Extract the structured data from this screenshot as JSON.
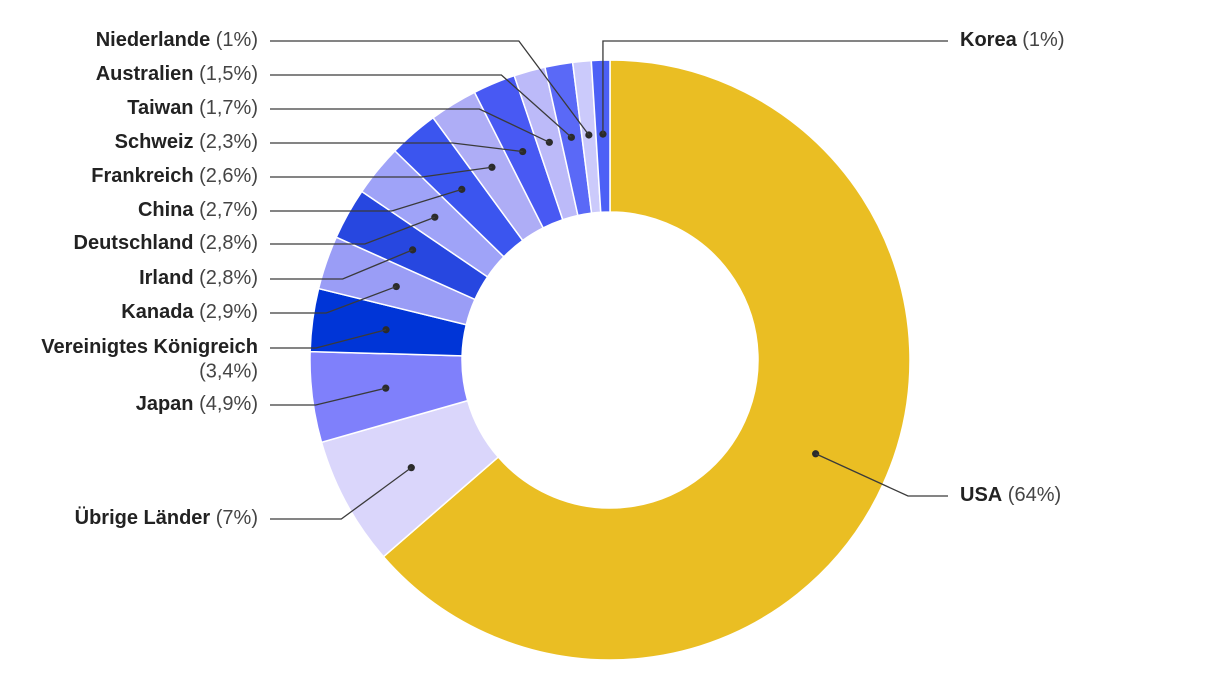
{
  "chart_data": {
    "type": "pie",
    "variant": "donut",
    "title": "",
    "slices": [
      {
        "label": "USA",
        "value": 64,
        "value_label": "(64%)",
        "color": "#EABE23"
      },
      {
        "label": "Übrige Länder",
        "value": 7,
        "value_label": "(7%)",
        "color": "#DAD6FB"
      },
      {
        "label": "Japan",
        "value": 4.9,
        "value_label": "(4,9%)",
        "color": "#7F80FB"
      },
      {
        "label": "Vereinigtes Königreich",
        "value": 3.4,
        "value_label": "(3,4%)",
        "color": "#0035D7"
      },
      {
        "label": "Kanada",
        "value": 2.9,
        "value_label": "(2,9%)",
        "color": "#9A9DF6"
      },
      {
        "label": "Irland",
        "value": 2.8,
        "value_label": "(2,8%)",
        "color": "#2747E0"
      },
      {
        "label": "Deutschland",
        "value": 2.8,
        "value_label": "(2,8%)",
        "color": "#9FA3F8"
      },
      {
        "label": "China",
        "value": 2.7,
        "value_label": "(2,7%)",
        "color": "#3B55EF"
      },
      {
        "label": "Frankreich",
        "value": 2.6,
        "value_label": "(2,6%)",
        "color": "#AEADF6"
      },
      {
        "label": "Schweiz",
        "value": 2.3,
        "value_label": "(2,3%)",
        "color": "#4859F3"
      },
      {
        "label": "Taiwan",
        "value": 1.7,
        "value_label": "(1,7%)",
        "color": "#BCBAF9"
      },
      {
        "label": "Australien",
        "value": 1.5,
        "value_label": "(1,5%)",
        "color": "#5A69F7"
      },
      {
        "label": "Niederlande",
        "value": 1,
        "value_label": "(1%)",
        "color": "#CBCAFB"
      },
      {
        "label": "Korea",
        "value": 1,
        "value_label": "(1%)",
        "color": "#4C60F6"
      }
    ],
    "legend": "none (callout labels with leader lines)"
  }
}
